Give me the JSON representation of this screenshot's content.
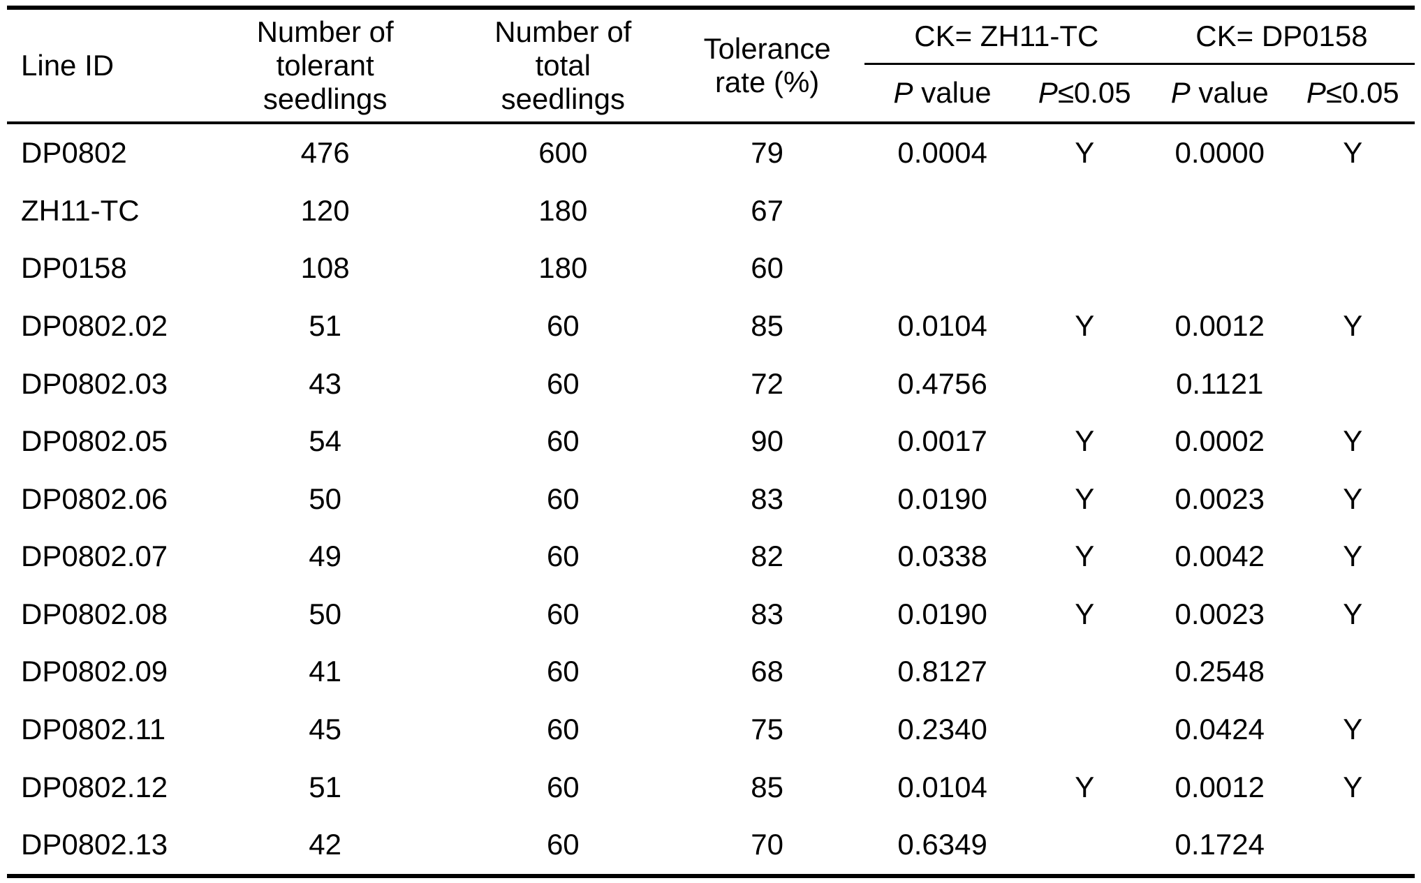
{
  "page": {
    "background": "#ffffff",
    "text_color": "#000000",
    "rule_color": "#000000"
  },
  "table": {
    "headers": {
      "line_id": "Line ID",
      "tolerant_seedlings": "Number of tolerant seedlings",
      "total_seedlings": "Number of total seedlings",
      "tolerance_rate": "Tolerance rate (%)",
      "ck_group_1": "CK= ZH11-TC",
      "ck_group_2": "CK= DP0158",
      "p_symbol": "P",
      "p_value_suffix": " value",
      "p_threshold_suffix": "≤0.05"
    },
    "row_keys": [
      "line_id",
      "tolerant",
      "total",
      "rate",
      "p_value_ck1",
      "sig_ck1",
      "p_value_ck2",
      "sig_ck2"
    ],
    "rows": [
      {
        "line_id": "DP0802",
        "tolerant": "476",
        "total": "600",
        "rate": "79",
        "p_value_ck1": "0.0004",
        "sig_ck1": "Y",
        "p_value_ck2": "0.0000",
        "sig_ck2": "Y"
      },
      {
        "line_id": "ZH11-TC",
        "tolerant": "120",
        "total": "180",
        "rate": "67",
        "p_value_ck1": "",
        "sig_ck1": "",
        "p_value_ck2": "",
        "sig_ck2": ""
      },
      {
        "line_id": "DP0158",
        "tolerant": "108",
        "total": "180",
        "rate": "60",
        "p_value_ck1": "",
        "sig_ck1": "",
        "p_value_ck2": "",
        "sig_ck2": ""
      },
      {
        "line_id": "DP0802.02",
        "tolerant": "51",
        "total": "60",
        "rate": "85",
        "p_value_ck1": "0.0104",
        "sig_ck1": "Y",
        "p_value_ck2": "0.0012",
        "sig_ck2": "Y"
      },
      {
        "line_id": "DP0802.03",
        "tolerant": "43",
        "total": "60",
        "rate": "72",
        "p_value_ck1": "0.4756",
        "sig_ck1": "",
        "p_value_ck2": "0.1121",
        "sig_ck2": ""
      },
      {
        "line_id": "DP0802.05",
        "tolerant": "54",
        "total": "60",
        "rate": "90",
        "p_value_ck1": "0.0017",
        "sig_ck1": "Y",
        "p_value_ck2": "0.0002",
        "sig_ck2": "Y"
      },
      {
        "line_id": "DP0802.06",
        "tolerant": "50",
        "total": "60",
        "rate": "83",
        "p_value_ck1": "0.0190",
        "sig_ck1": "Y",
        "p_value_ck2": "0.0023",
        "sig_ck2": "Y"
      },
      {
        "line_id": "DP0802.07",
        "tolerant": "49",
        "total": "60",
        "rate": "82",
        "p_value_ck1": "0.0338",
        "sig_ck1": "Y",
        "p_value_ck2": "0.0042",
        "sig_ck2": "Y"
      },
      {
        "line_id": "DP0802.08",
        "tolerant": "50",
        "total": "60",
        "rate": "83",
        "p_value_ck1": "0.0190",
        "sig_ck1": "Y",
        "p_value_ck2": "0.0023",
        "sig_ck2": "Y"
      },
      {
        "line_id": "DP0802.09",
        "tolerant": "41",
        "total": "60",
        "rate": "68",
        "p_value_ck1": "0.8127",
        "sig_ck1": "",
        "p_value_ck2": "0.2548",
        "sig_ck2": ""
      },
      {
        "line_id": "DP0802.11",
        "tolerant": "45",
        "total": "60",
        "rate": "75",
        "p_value_ck1": "0.2340",
        "sig_ck1": "",
        "p_value_ck2": "0.0424",
        "sig_ck2": "Y"
      },
      {
        "line_id": "DP0802.12",
        "tolerant": "51",
        "total": "60",
        "rate": "85",
        "p_value_ck1": "0.0104",
        "sig_ck1": "Y",
        "p_value_ck2": "0.0012",
        "sig_ck2": "Y"
      },
      {
        "line_id": "DP0802.13",
        "tolerant": "42",
        "total": "60",
        "rate": "70",
        "p_value_ck1": "0.6349",
        "sig_ck1": "",
        "p_value_ck2": "0.1724",
        "sig_ck2": ""
      }
    ]
  }
}
